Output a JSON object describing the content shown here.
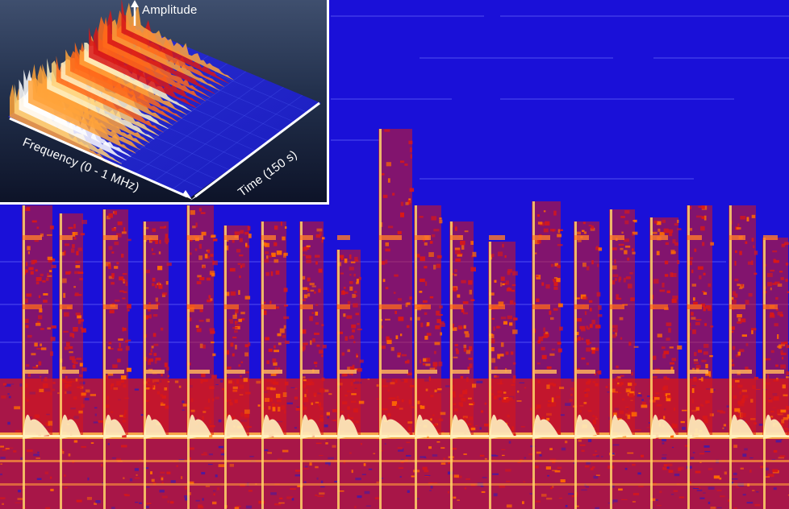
{
  "inset": {
    "amplitude_label": "Amplitude",
    "frequency_label": "Frequency (0 - 1 MHz)",
    "time_label": "Time (150 s)"
  },
  "colors": {
    "background_low": "#1a10d8",
    "mid": "#d81818",
    "high": "#ff6a00",
    "peak": "#fff2c0",
    "inset_frame": "#ffffff"
  }
}
